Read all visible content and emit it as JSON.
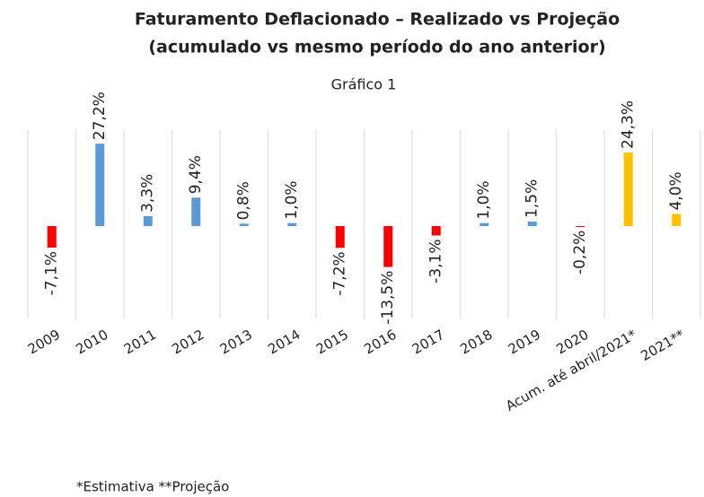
{
  "chart_data": {
    "type": "bar",
    "title": "Faturamento Deflacionado – Realizado vs Projeção",
    "subtitle": "(acumulado vs mesmo período do ano anterior)",
    "chart_label": "Gráfico 1",
    "categories": [
      "2009",
      "2010",
      "2011",
      "2012",
      "2013",
      "2014",
      "2015",
      "2016",
      "2017",
      "2018",
      "2019",
      "2020",
      "Acum. até abril/2021*",
      "2021**"
    ],
    "values": [
      -7.1,
      27.2,
      3.3,
      9.4,
      0.8,
      1.0,
      -7.2,
      -13.5,
      -3.1,
      1.0,
      1.5,
      -0.2,
      24.3,
      4.0
    ],
    "value_labels": [
      "-7,1%",
      "27,2%",
      "3,3%",
      "9,4%",
      "0,8%",
      "1,0%",
      "-7,2%",
      "-13,5%",
      "-3,1%",
      "1,0%",
      "1,5%",
      "-0,2%",
      "24,3%",
      "4,0%"
    ],
    "colors": [
      "#ff0000",
      "#5b9bd5",
      "#5b9bd5",
      "#5b9bd5",
      "#5b9bd5",
      "#5b9bd5",
      "#ff0000",
      "#ff0000",
      "#ff0000",
      "#5b9bd5",
      "#5b9bd5",
      "#ff0000",
      "#ffc000",
      "#ffc000"
    ],
    "ylim": [
      -30.5,
      31.7
    ],
    "footnote": "*Estimativa  **Projeção"
  }
}
